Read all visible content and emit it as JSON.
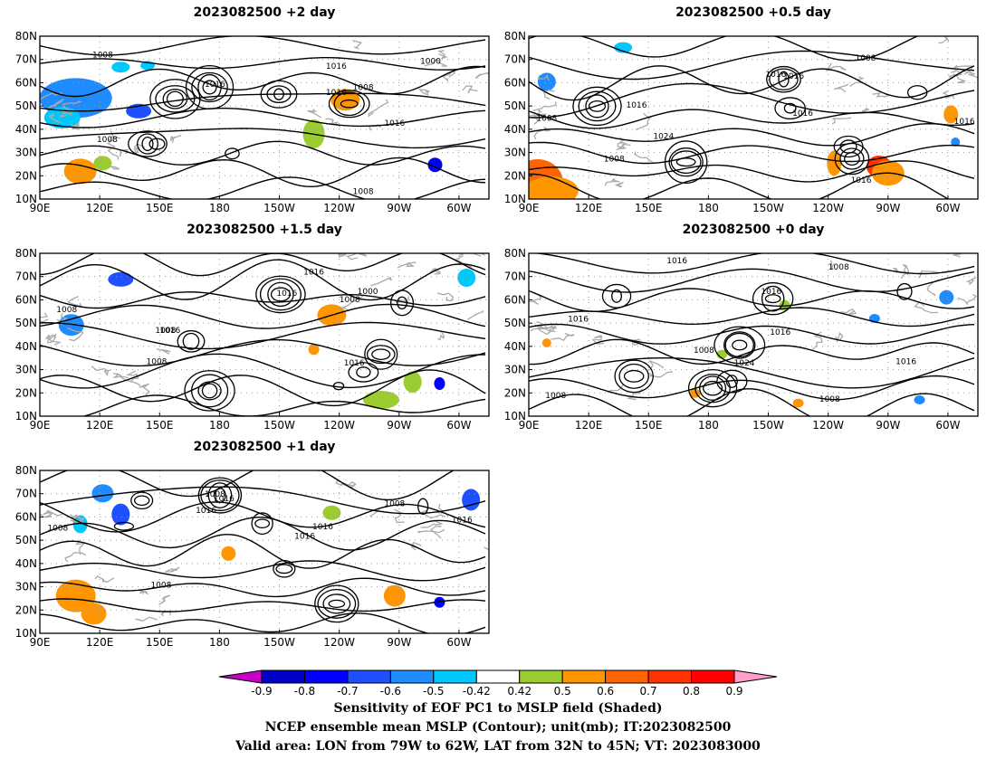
{
  "panels": [
    {
      "title": "2023082500 +2 day",
      "labels": [
        "1008",
        "1016",
        "1000",
        "1016",
        "1008",
        "1016",
        "1008",
        "1016",
        "1008"
      ]
    },
    {
      "title": "2023082500 +0.5 day",
      "labels": [
        "1008",
        "1008",
        "1016",
        "1016",
        "1016",
        "1016",
        "1024",
        "1008",
        "1016",
        "1016"
      ]
    },
    {
      "title": "2023082500 +1.5 day",
      "labels": [
        "1008",
        "1016",
        "1016",
        "1008",
        "1000",
        "1016",
        "1008",
        "1008",
        "1016"
      ]
    },
    {
      "title": "2023082500 +0 day",
      "labels": [
        "1016",
        "1008",
        "1016",
        "1016",
        "1008",
        "1024",
        "1016",
        "1016",
        "1008",
        "1008"
      ]
    },
    {
      "title": "2023082500 +1 day",
      "labels": [
        "1016",
        "1008",
        "1016",
        "1008",
        "1016",
        "1016",
        "1008",
        "1016",
        "1008"
      ]
    }
  ],
  "axes": {
    "lat_labels": [
      "80N",
      "70N",
      "60N",
      "50N",
      "40N",
      "30N",
      "20N",
      "10N"
    ],
    "lon_labels": [
      "90E",
      "120E",
      "150E",
      "180",
      "150W",
      "120W",
      "90W",
      "60W"
    ]
  },
  "colorbar": {
    "ticks": [
      "-0.9",
      "-0.8",
      "-0.7",
      "-0.6",
      "-0.5",
      "-0.42",
      "0.42",
      "0.5",
      "0.6",
      "0.7",
      "0.8",
      "0.9"
    ],
    "colors": [
      "#c800c8",
      "#0000c8",
      "#0000ff",
      "#1e50ff",
      "#1e8cff",
      "#00c8ff",
      "#ffffff",
      "#9bcd32",
      "#ff9600",
      "#ff6400",
      "#ff3200",
      "#ff0000",
      "#ffa0c8"
    ]
  },
  "caption": {
    "line1": "Sensitivity of EOF PC1 to MSLP field (Shaded)",
    "line2": "NCEP ensemble mean MSLP (Contour); unit(mb); IT:2023082500",
    "line3": "Valid area: LON from 79W to 62W, LAT from 32N to 45N; VT: 2023083000"
  }
}
